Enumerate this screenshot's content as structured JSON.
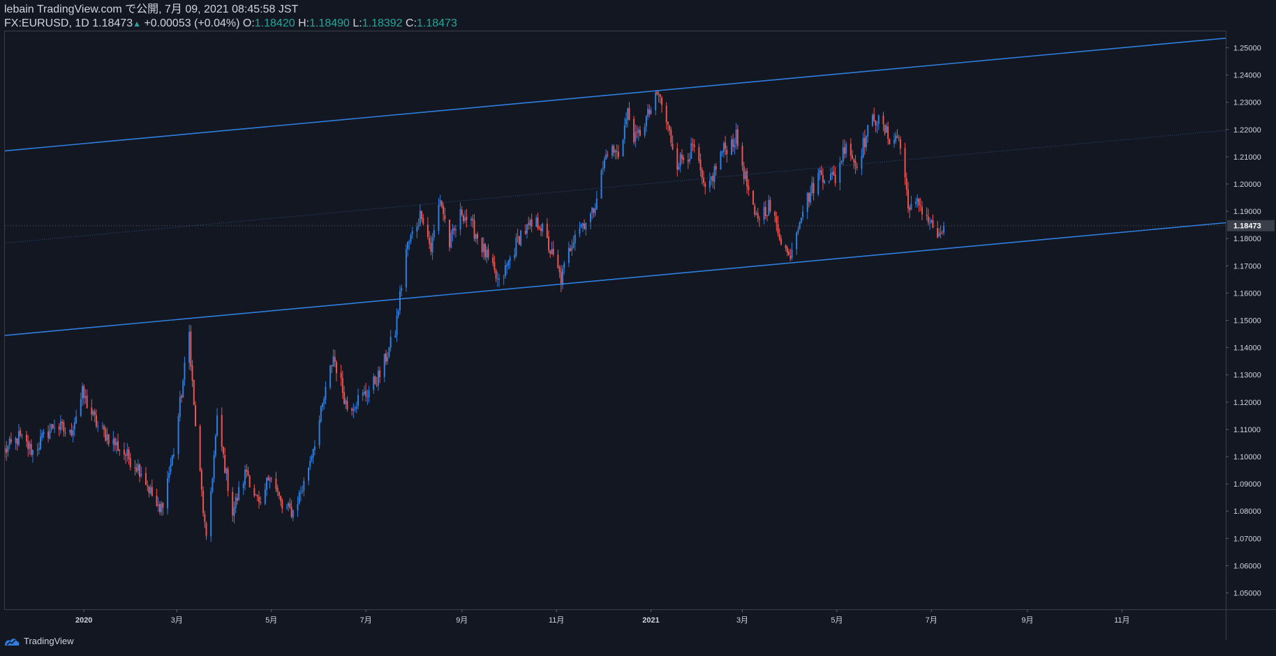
{
  "header": {
    "published": "lebain TradingView.com で公開, 7月 09, 2021 08:45:58 JST",
    "symbol": "FX:EURUSD, 1D",
    "last": "1.18473",
    "arrow": "▲",
    "change": "+0.00053 (+0.04%)",
    "o_label": "O:",
    "o": "1.18420",
    "h_label": "H:",
    "h": "1.18490",
    "l_label": "L:",
    "l": "1.18392",
    "c_label": "C:",
    "c": "1.18473"
  },
  "footer": {
    "brand": "TradingView",
    "logo_icon": "tradingview-logo-icon"
  },
  "colors": {
    "background": "#131722",
    "up": "#2f7fe0",
    "down": "#ef5350",
    "channel": "#2f7fe0",
    "grid_text": "#d1d4dc",
    "last_price_bg": "#3b3f4a"
  },
  "chart_data": {
    "type": "candlestick",
    "symbol": "FX:EURUSD",
    "interval": "1D",
    "yaxis": {
      "ylim": [
        1.044,
        1.256
      ],
      "ticks": [
        "1.05000",
        "1.06000",
        "1.07000",
        "1.08000",
        "1.09000",
        "1.10000",
        "1.11000",
        "1.12000",
        "1.13000",
        "1.14000",
        "1.15000",
        "1.16000",
        "1.17000",
        "1.18000",
        "1.19000",
        "1.20000",
        "1.21000",
        "1.22000",
        "1.23000",
        "1.24000",
        "1.25000"
      ],
      "last_price_label": "1.18473"
    },
    "xaxis": {
      "xlim": [
        "2019-11-11",
        "2022-01-07"
      ],
      "ticks": [
        {
          "date": "2020-01-01",
          "label": "2020",
          "bold": true
        },
        {
          "date": "2020-03-01",
          "label": "3月"
        },
        {
          "date": "2020-05-01",
          "label": "5月"
        },
        {
          "date": "2020-07-01",
          "label": "7月"
        },
        {
          "date": "2020-09-01",
          "label": "9月"
        },
        {
          "date": "2020-11-01",
          "label": "11月"
        },
        {
          "date": "2021-01-01",
          "label": "2021",
          "bold": true
        },
        {
          "date": "2021-03-01",
          "label": "3月"
        },
        {
          "date": "2021-05-01",
          "label": "5月"
        },
        {
          "date": "2021-07-01",
          "label": "7月"
        },
        {
          "date": "2021-09-01",
          "label": "9月"
        },
        {
          "date": "2021-11-01",
          "label": "11月"
        }
      ]
    },
    "price_path": [
      [
        "2019-11-11",
        1.102
      ],
      [
        "2019-11-20",
        1.107
      ],
      [
        "2019-11-29",
        1.102
      ],
      [
        "2019-12-13",
        1.112
      ],
      [
        "2019-12-23",
        1.108
      ],
      [
        "2019-12-31",
        1.123
      ],
      [
        "2020-01-10",
        1.111
      ],
      [
        "2020-01-24",
        1.103
      ],
      [
        "2020-02-07",
        1.095
      ],
      [
        "2020-02-19",
        1.079
      ],
      [
        "2020-02-28",
        1.102
      ],
      [
        "2020-03-09",
        1.145
      ],
      [
        "2020-03-12",
        1.118
      ],
      [
        "2020-03-20",
        1.068
      ],
      [
        "2020-03-27",
        1.113
      ],
      [
        "2020-04-06",
        1.08
      ],
      [
        "2020-04-15",
        1.095
      ],
      [
        "2020-04-24",
        1.08
      ],
      [
        "2020-04-30",
        1.095
      ],
      [
        "2020-05-08",
        1.081
      ],
      [
        "2020-05-15",
        1.08
      ],
      [
        "2020-05-22",
        1.09
      ],
      [
        "2020-06-01",
        1.113
      ],
      [
        "2020-06-10",
        1.137
      ],
      [
        "2020-06-19",
        1.118
      ],
      [
        "2020-07-01",
        1.123
      ],
      [
        "2020-07-10",
        1.13
      ],
      [
        "2020-07-20",
        1.146
      ],
      [
        "2020-07-27",
        1.176
      ],
      [
        "2020-08-06",
        1.19
      ],
      [
        "2020-08-12",
        1.176
      ],
      [
        "2020-08-18",
        1.195
      ],
      [
        "2020-08-24",
        1.178
      ],
      [
        "2020-09-01",
        1.19
      ],
      [
        "2020-09-10",
        1.182
      ],
      [
        "2020-09-25",
        1.163
      ],
      [
        "2020-10-09",
        1.182
      ],
      [
        "2020-10-21",
        1.186
      ],
      [
        "2020-11-04",
        1.165
      ],
      [
        "2020-11-13",
        1.183
      ],
      [
        "2020-11-24",
        1.189
      ],
      [
        "2020-12-04",
        1.213
      ],
      [
        "2020-12-11",
        1.211
      ],
      [
        "2020-12-17",
        1.226
      ],
      [
        "2020-12-22",
        1.216
      ],
      [
        "2021-01-06",
        1.233
      ],
      [
        "2021-01-18",
        1.208
      ],
      [
        "2021-01-29",
        1.213
      ],
      [
        "2021-02-05",
        1.196
      ],
      [
        "2021-02-16",
        1.212
      ],
      [
        "2021-02-25",
        1.217
      ],
      [
        "2021-03-09",
        1.187
      ],
      [
        "2021-03-18",
        1.192
      ],
      [
        "2021-03-31",
        1.173
      ],
      [
        "2021-04-08",
        1.19
      ],
      [
        "2021-04-20",
        1.204
      ],
      [
        "2021-04-30",
        1.202
      ],
      [
        "2021-05-07",
        1.216
      ],
      [
        "2021-05-13",
        1.207
      ],
      [
        "2021-05-25",
        1.225
      ],
      [
        "2021-06-04",
        1.217
      ],
      [
        "2021-06-10",
        1.217
      ],
      [
        "2021-06-17",
        1.19
      ],
      [
        "2021-06-23",
        1.193
      ],
      [
        "2021-07-07",
        1.179
      ],
      [
        "2021-07-09",
        1.1847
      ]
    ],
    "channel_lines": [
      {
        "name": "upper-channel",
        "start": [
          "2019-11-08",
          1.212
        ],
        "end": [
          "2022-01-07",
          1.2535
        ],
        "style": "solid"
      },
      {
        "name": "channel-midline",
        "start": [
          "2019-11-08",
          1.1782
        ],
        "end": [
          "2022-01-07",
          1.2197
        ],
        "style": "dotted"
      },
      {
        "name": "lower-channel",
        "start": [
          "2019-11-08",
          1.1443
        ],
        "end": [
          "2022-01-07",
          1.1858
        ],
        "style": "solid"
      }
    ],
    "last_price_line": 1.18473
  }
}
